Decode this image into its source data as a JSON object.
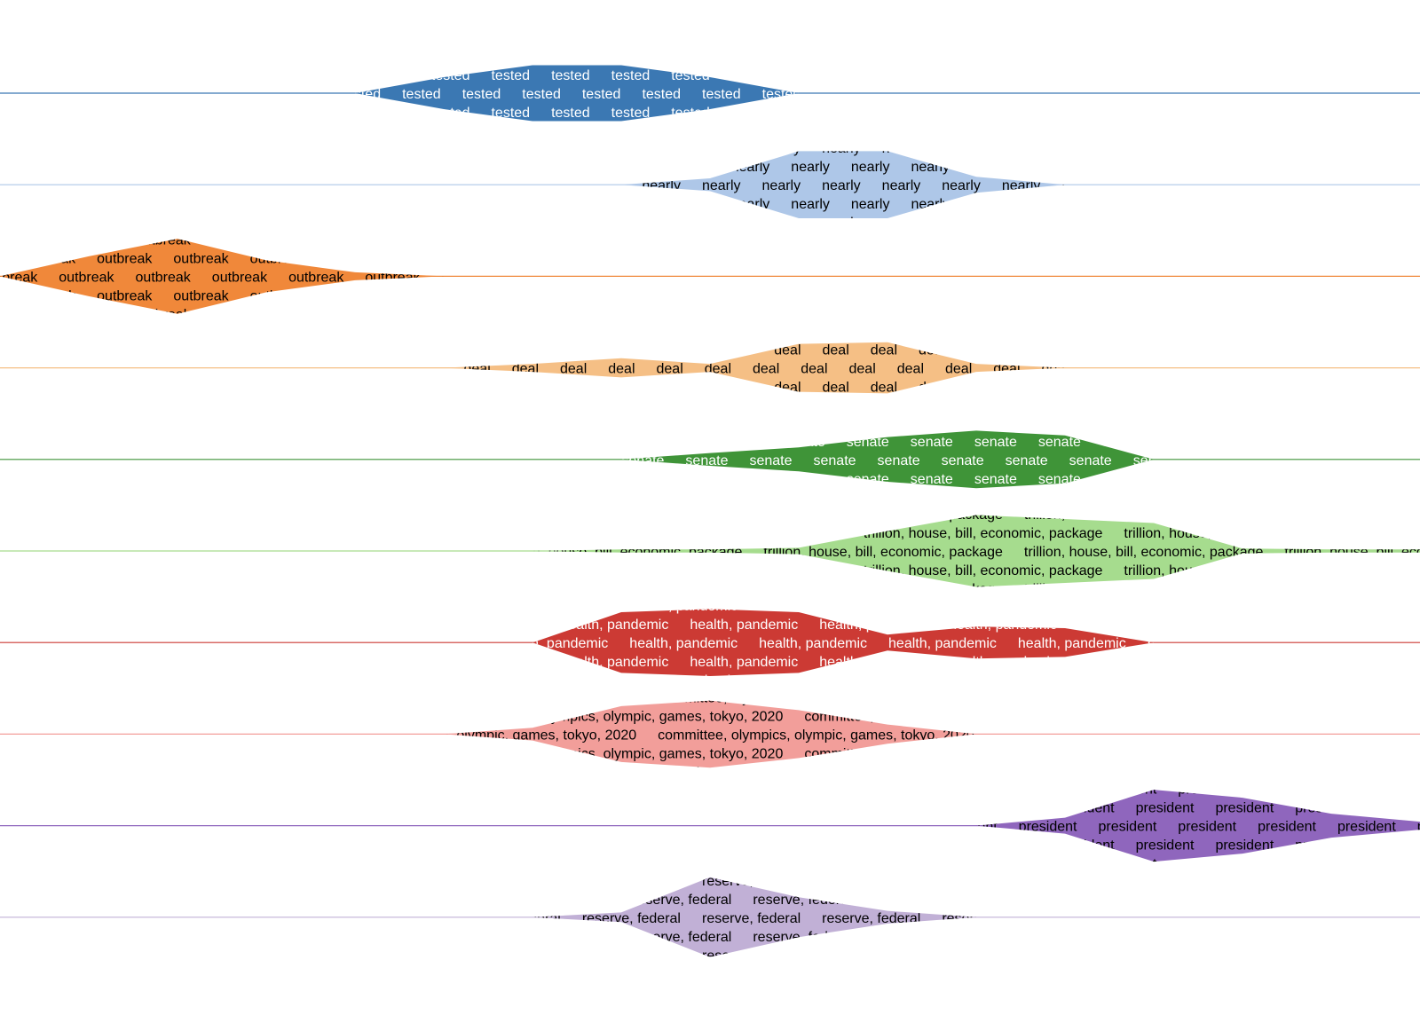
{
  "chart_data": {
    "type": "area",
    "title": "",
    "xlabel": "",
    "ylabel": "",
    "xlim": [
      0,
      16
    ],
    "grid": false,
    "legend": "none",
    "series": [
      {
        "label": "tested",
        "color": "#3b78b3",
        "text_color": "#ffffff",
        "widths": [
          0,
          0,
          0,
          0,
          0,
          0.2,
          0.35,
          0.35,
          0.2,
          0,
          0,
          0,
          0,
          0,
          0,
          0,
          0
        ]
      },
      {
        "label": "nearly",
        "color": "#aec7e8",
        "text_color": "#000000",
        "widths": [
          0,
          0,
          0,
          0,
          0,
          0,
          0,
          0,
          0.08,
          0.42,
          0.42,
          0.1,
          0,
          0,
          0,
          0,
          0
        ]
      },
      {
        "label": "outbreak",
        "color": "#f0883a",
        "text_color": "#000000",
        "widths": [
          0,
          0.25,
          0.47,
          0.2,
          0.05,
          0,
          0,
          0,
          0,
          0,
          0,
          0,
          0,
          0,
          0,
          0,
          0
        ]
      },
      {
        "label": "deal",
        "color": "#f5bf85",
        "text_color": "#000000",
        "widths": [
          0,
          0,
          0,
          0,
          0,
          0,
          0.05,
          0.12,
          0.05,
          0.3,
          0.32,
          0.05,
          0,
          0,
          0,
          0,
          0
        ]
      },
      {
        "label": "senate",
        "color": "#3f9438",
        "text_color": "#ffffff",
        "widths": [
          0,
          0,
          0,
          0,
          0,
          0,
          0,
          0,
          0.08,
          0.15,
          0.28,
          0.36,
          0.3,
          0,
          0,
          0,
          0
        ]
      },
      {
        "label": "trillion, house, bill, economic, package",
        "color": "#a6dc8e",
        "text_color": "#000000",
        "widths": [
          0,
          0,
          0,
          0,
          0,
          0,
          0,
          0.02,
          0.02,
          0.04,
          0.25,
          0.45,
          0.4,
          0.35,
          0.03,
          0.02,
          0.02
        ]
      },
      {
        "label": "health, pandemic",
        "color": "#cc3a34",
        "text_color": "#ffffff",
        "widths": [
          0,
          0,
          0,
          0,
          0,
          0,
          0,
          0.38,
          0.42,
          0.38,
          0.1,
          0.2,
          0.18,
          0,
          0,
          0,
          0
        ]
      },
      {
        "label": "committee, olympics, olympic, games, tokyo, 2020",
        "color": "#f29e9a",
        "text_color": "#000000",
        "widths": [
          0,
          0,
          0,
          0,
          0,
          0,
          0.08,
          0.35,
          0.42,
          0.3,
          0.12,
          0,
          0,
          0,
          0,
          0,
          0
        ]
      },
      {
        "label": "president",
        "color": "#8f66bd",
        "text_color": "#000000",
        "widths": [
          0,
          0,
          0,
          0,
          0,
          0,
          0,
          0,
          0,
          0,
          0,
          0,
          0.1,
          0.45,
          0.35,
          0.15,
          0.05
        ]
      },
      {
        "label": "reserve, federal",
        "color": "#c1b0d6",
        "text_color": "#000000",
        "widths": [
          0,
          0,
          0,
          0,
          0,
          0,
          0,
          0.06,
          0.5,
          0.25,
          0.08,
          0,
          0,
          0,
          0,
          0,
          0
        ]
      }
    ]
  }
}
